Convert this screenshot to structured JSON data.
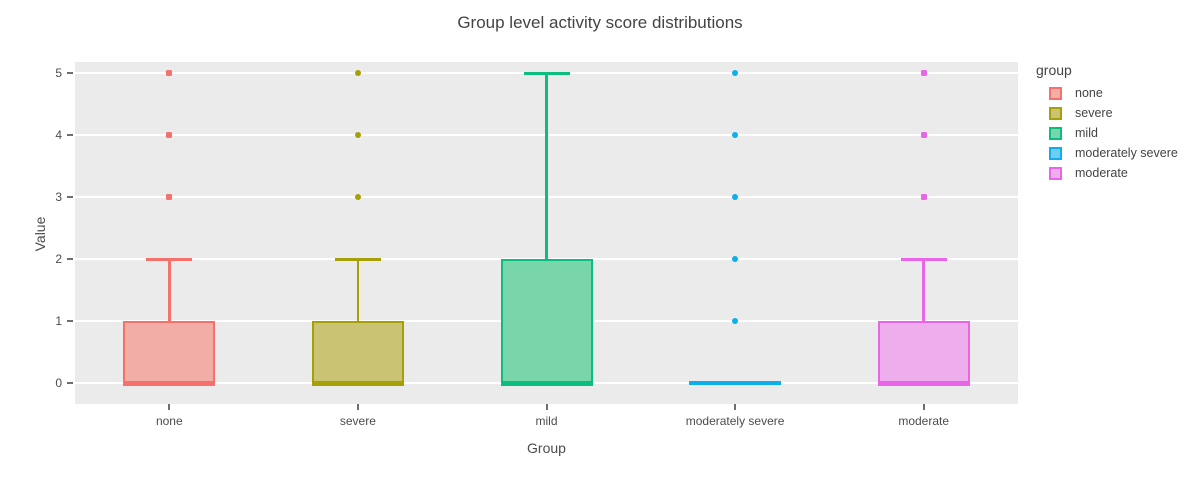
{
  "title": "Group level activity score distributions",
  "axes": {
    "x_title": "Group",
    "y_title": "Value"
  },
  "legend": {
    "title": "group",
    "position": "right"
  },
  "chart_data": {
    "type": "box",
    "title": "Group level activity score distributions",
    "xlabel": "Group",
    "ylabel": "Value",
    "categories": [
      "none",
      "severe",
      "mild",
      "moderately severe",
      "moderate"
    ],
    "yticks": [
      0,
      1,
      2,
      3,
      4,
      5
    ],
    "ylim": [
      -0.34,
      5.18
    ],
    "grid": true,
    "plot_bg_color": "#ebebeb",
    "gridline_color": "#ffffff",
    "legend_title": "group",
    "legend_position": "right",
    "series": [
      {
        "name": "none",
        "line_color": "#f4726b",
        "fill_color": "#f3ada7",
        "marker": "square",
        "min": 0,
        "q1": 0,
        "median": 0,
        "q3": 1,
        "whisker_high": 2,
        "outliers": [
          3,
          4,
          5
        ]
      },
      {
        "name": "severe",
        "line_color": "#a4a006",
        "fill_color": "#c9c373",
        "marker": "circle",
        "min": 0,
        "q1": 0,
        "median": 0,
        "q3": 1,
        "whisker_high": 2,
        "outliers": [
          3,
          4,
          5
        ]
      },
      {
        "name": "mild",
        "line_color": "#0cbd80",
        "fill_color": "#79d6ab",
        "marker": "circle",
        "min": 0,
        "q1": 0,
        "median": 0,
        "q3": 2,
        "whisker_high": 5,
        "outliers": []
      },
      {
        "name": "moderately severe",
        "line_color": "#0caeec",
        "fill_color": "#6fcdf4",
        "marker": "circle",
        "min": 0,
        "q1": 0,
        "median": 0,
        "q3": 0,
        "whisker_high": 0,
        "outliers": [
          1,
          2,
          3,
          4,
          5
        ]
      },
      {
        "name": "moderate",
        "line_color": "#e865e8",
        "fill_color": "#eeaeee",
        "marker": "square",
        "min": 0,
        "q1": 0,
        "median": 0,
        "q3": 1,
        "whisker_high": 2,
        "outliers": [
          3,
          4,
          5
        ]
      }
    ]
  }
}
